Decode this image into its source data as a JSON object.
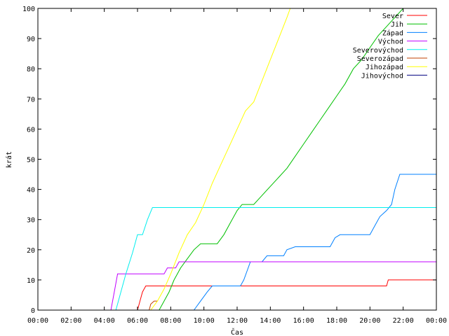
{
  "chart_data": {
    "type": "line",
    "xlabel": "Čas",
    "ylabel": "krát",
    "xlim": [
      0,
      24
    ],
    "ylim": [
      0,
      100
    ],
    "x_ticks": [
      {
        "value": 0,
        "label": "00:00"
      },
      {
        "value": 2,
        "label": "02:00"
      },
      {
        "value": 4,
        "label": "04:00"
      },
      {
        "value": 6,
        "label": "06:00"
      },
      {
        "value": 8,
        "label": "08:00"
      },
      {
        "value": 10,
        "label": "10:00"
      },
      {
        "value": 12,
        "label": "12:00"
      },
      {
        "value": 14,
        "label": "14:00"
      },
      {
        "value": 16,
        "label": "16:00"
      },
      {
        "value": 18,
        "label": "18:00"
      },
      {
        "value": 20,
        "label": "20:00"
      },
      {
        "value": 22,
        "label": "22:00"
      },
      {
        "value": 24,
        "label": "00:00"
      }
    ],
    "y_ticks": [
      0,
      10,
      20,
      30,
      40,
      50,
      60,
      70,
      80,
      90,
      100
    ],
    "grid": false,
    "legend_position": "top-right",
    "series": [
      {
        "name": "Sever",
        "color": "#ff0000",
        "points": [
          [
            6.0,
            0
          ],
          [
            6.2,
            4
          ],
          [
            6.3,
            6
          ],
          [
            6.5,
            8
          ],
          [
            12.2,
            8
          ],
          [
            21.0,
            8
          ],
          [
            21.1,
            10
          ],
          [
            24,
            10
          ]
        ]
      },
      {
        "name": "Jih",
        "color": "#00c000",
        "points": [
          [
            7.3,
            0
          ],
          [
            7.6,
            3
          ],
          [
            7.9,
            6
          ],
          [
            8.2,
            10
          ],
          [
            8.6,
            14
          ],
          [
            9.0,
            17
          ],
          [
            9.4,
            20
          ],
          [
            9.8,
            22
          ],
          [
            10.8,
            22
          ],
          [
            11.2,
            25
          ],
          [
            11.6,
            29
          ],
          [
            12.0,
            33
          ],
          [
            12.3,
            35
          ],
          [
            13.0,
            35
          ],
          [
            13.5,
            38
          ],
          [
            14.0,
            41
          ],
          [
            14.5,
            44
          ],
          [
            15.0,
            47
          ],
          [
            15.5,
            51
          ],
          [
            16.0,
            55
          ],
          [
            16.5,
            59
          ],
          [
            17.0,
            63
          ],
          [
            17.5,
            67
          ],
          [
            18.0,
            71
          ],
          [
            18.5,
            75
          ],
          [
            19.0,
            80
          ],
          [
            19.5,
            83
          ],
          [
            20.0,
            87
          ],
          [
            20.5,
            91
          ],
          [
            21.0,
            94
          ],
          [
            21.5,
            97
          ],
          [
            22.0,
            100
          ]
        ]
      },
      {
        "name": "Západ",
        "color": "#0080ff",
        "points": [
          [
            9.4,
            0
          ],
          [
            9.8,
            3
          ],
          [
            10.2,
            6
          ],
          [
            10.5,
            8
          ],
          [
            12.2,
            8
          ],
          [
            12.4,
            10
          ],
          [
            12.6,
            13
          ],
          [
            12.8,
            16
          ],
          [
            13.5,
            16
          ],
          [
            13.8,
            18
          ],
          [
            14.8,
            18
          ],
          [
            15.0,
            20
          ],
          [
            15.5,
            21
          ],
          [
            17.6,
            21
          ],
          [
            17.9,
            24
          ],
          [
            18.2,
            25
          ],
          [
            20.0,
            25
          ],
          [
            20.3,
            28
          ],
          [
            20.6,
            31
          ],
          [
            21.0,
            33
          ],
          [
            21.3,
            35
          ],
          [
            21.5,
            40
          ],
          [
            21.8,
            45
          ],
          [
            24,
            45
          ]
        ]
      },
      {
        "name": "Východ",
        "color": "#c000ff",
        "points": [
          [
            4.4,
            0
          ],
          [
            4.6,
            6
          ],
          [
            4.8,
            12
          ],
          [
            7.6,
            12
          ],
          [
            7.8,
            14
          ],
          [
            8.3,
            14
          ],
          [
            8.5,
            16
          ],
          [
            24,
            16
          ]
        ]
      },
      {
        "name": "Severovýchod",
        "color": "#00eeee",
        "points": [
          [
            4.7,
            0
          ],
          [
            5.0,
            6
          ],
          [
            5.3,
            12
          ],
          [
            5.7,
            19
          ],
          [
            6.0,
            25
          ],
          [
            6.3,
            25
          ],
          [
            6.6,
            30
          ],
          [
            6.9,
            34
          ],
          [
            24,
            34
          ]
        ]
      },
      {
        "name": "Severozápad",
        "color": "#c04000",
        "points": [
          [
            6.7,
            0
          ],
          [
            6.8,
            2
          ],
          [
            7.0,
            3
          ],
          [
            7.2,
            3
          ]
        ]
      },
      {
        "name": "Jihozápad",
        "color": "#ffff00",
        "points": [
          [
            6.8,
            0
          ],
          [
            7.2,
            3
          ],
          [
            7.6,
            7
          ],
          [
            8.0,
            12
          ],
          [
            8.5,
            19
          ],
          [
            9.0,
            25
          ],
          [
            9.5,
            29
          ],
          [
            10.0,
            35
          ],
          [
            10.5,
            42
          ],
          [
            11.0,
            48
          ],
          [
            11.5,
            54
          ],
          [
            12.0,
            60
          ],
          [
            12.5,
            66
          ],
          [
            13.0,
            69
          ],
          [
            13.5,
            76
          ],
          [
            14.0,
            83
          ],
          [
            14.5,
            90
          ],
          [
            15.0,
            97
          ],
          [
            15.2,
            100
          ]
        ]
      },
      {
        "name": "Jihovýchod",
        "color": "#000080",
        "points": []
      }
    ]
  }
}
